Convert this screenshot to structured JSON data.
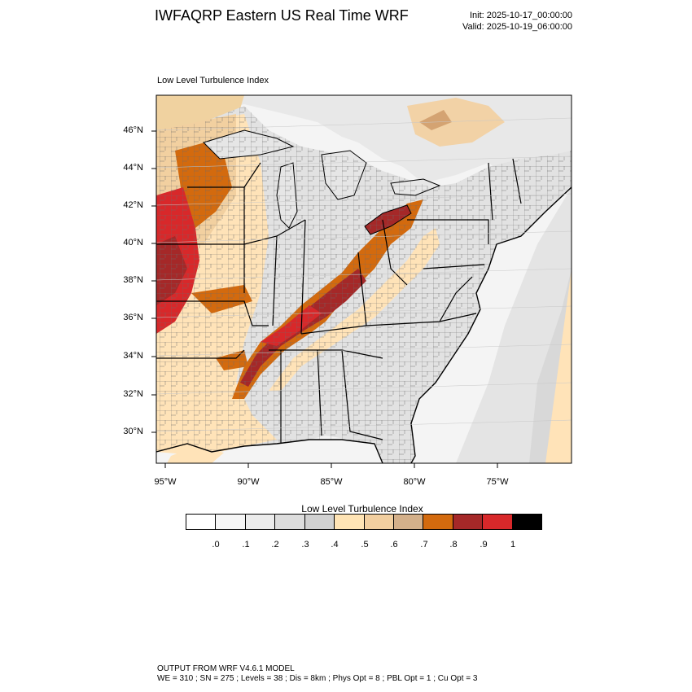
{
  "header": {
    "title": "IWFAQRP Eastern US Real Time WRF",
    "init": "Init: 2025-10-17_00:00:00",
    "valid": "Valid: 2025-10-19_06:00:00"
  },
  "map": {
    "subtitle": "Low Level Turbulence Index",
    "lat_labels": [
      "46°N",
      "44°N",
      "42°N",
      "40°N",
      "38°N",
      "36°N",
      "34°N",
      "32°N",
      "30°N"
    ],
    "lon_labels": [
      "95°W",
      "90°W",
      "85°W",
      "80°W",
      "75°W"
    ],
    "colors": {
      "land_light": "#f3f3f3",
      "gray_2": "#dedede",
      "gray_3": "#d0d0d0",
      "tan_4": "#ffe6b8",
      "tan_5": "#f2d0a0",
      "tan_6": "#d5b48a",
      "orange_7": "#d36a0e",
      "brown_8": "#a52828",
      "red_9": "#d8282a",
      "ocean": "#f5f5f5",
      "lake": "#e6e6e6"
    }
  },
  "colorbar": {
    "title": "Low Level Turbulence Index",
    "colors": [
      "#ffffff",
      "#f6f6f6",
      "#ececec",
      "#dddddd",
      "#d1d1d1",
      "#ffe4b5",
      "#f2cfa0",
      "#d4b08a",
      "#d36a0e",
      "#a52828",
      "#d8282a",
      "#000000"
    ],
    "labels": [
      ".0",
      ".1",
      ".2",
      ".3",
      ".4",
      ".5",
      ".6",
      ".7",
      ".8",
      ".9",
      "1"
    ]
  },
  "footer": {
    "line1": "OUTPUT FROM WRF V4.6.1 MODEL",
    "line2": "WE = 310 ; SN = 275 ; Levels = 38 ; Dis = 8km ; Phys Opt = 8 ; PBL Opt = 1 ; Cu Opt = 3"
  }
}
